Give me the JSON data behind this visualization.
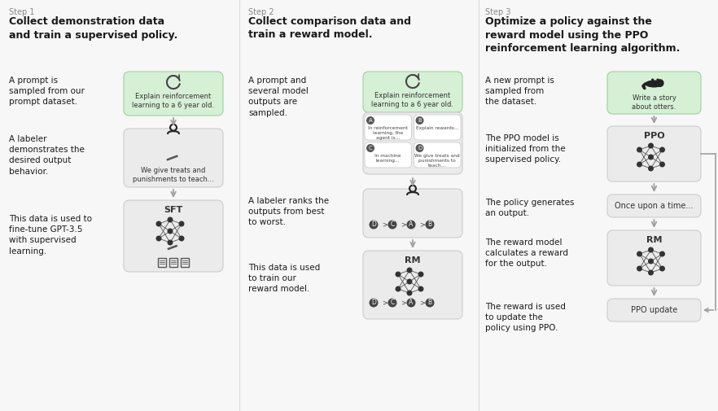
{
  "bg_color": "#f7f7f7",
  "step1": {
    "step_label": "Step 1",
    "title": "Collect demonstration data\nand train a supervised policy.",
    "desc1": "A prompt is\nsampled from our\nprompt dataset.",
    "desc2": "A labeler\ndemonstrates the\ndesired output\nbehavior.",
    "desc3": "This data is used to\nfine-tune GPT-3.5\nwith supervised\nlearning.",
    "box1_text": "Explain reinforcement\nlearning to a 6 year old.",
    "box2_text": "We give treats and\npunishments to teach...",
    "box3_label": "SFT"
  },
  "step2": {
    "step_label": "Step 2",
    "title": "Collect comparison data and\ntrain a reward model.",
    "desc1": "A prompt and\nseveral model\noutputs are\nsampled.",
    "desc2": "A labeler ranks the\noutputs from best\nto worst.",
    "desc3": "This data is used\nto train our\nreward model.",
    "box1_text": "Explain reinforcement\nlearning to a 6 year old.",
    "box_a": "In reinforcement\nlearning, the\nagent is...",
    "box_b": "Explain rewards...",
    "box_c": "In machine\nlearning...",
    "box_d": "We give treats and\npunishments to\nteach...",
    "box_rm_label": "RM"
  },
  "step3": {
    "step_label": "Step 3",
    "title": "Optimize a policy against the\nreward model using the PPO\nreinforcement learning algorithm.",
    "desc1": "A new prompt is\nsampled from\nthe dataset.",
    "desc2": "The PPO model is\ninitialized from the\nsupervised policy.",
    "desc3": "The policy generates\nan output.",
    "desc4": "The reward model\ncalculates a reward\nfor the output.",
    "desc5": "The reward is used\nto update the\npolicy using PPO.",
    "box1_text": "Write a story\nabout otters.",
    "box_ppo_label": "PPO",
    "box_output_text": "Once upon a time...",
    "box_rm_label": "RM",
    "box_update_text": "PPO update"
  },
  "green_bg": "#d6f0d6",
  "green_border": "#9ed09e",
  "gray_bg": "#ebebeb",
  "gray_border": "#cccccc",
  "white_bg": "#ffffff",
  "arrow_color": "#a0a0a0",
  "text_color": "#1a1a1a",
  "step_color": "#888888",
  "divider_color": "#dddddd",
  "node_color": "#333333",
  "edge_color": "#555555"
}
